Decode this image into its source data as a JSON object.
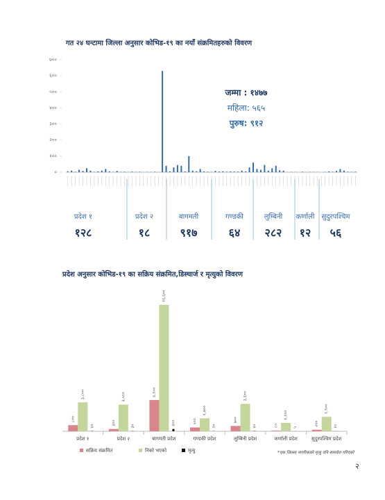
{
  "chart_data": [
    {
      "type": "bar",
      "title": "गत २४ घन्टामा जिल्ला अनुसार कोभिड-१९ का नयाँ संक्रमितहरुको विवरण",
      "categories": [
        null,
        null,
        null,
        null,
        null,
        null,
        null,
        null,
        null,
        null,
        null,
        null,
        null,
        null,
        null,
        null,
        null,
        null,
        null,
        null,
        null,
        null,
        null,
        null,
        null,
        null,
        null,
        null,
        null,
        null,
        null,
        null,
        null,
        null,
        null,
        null,
        null,
        null,
        null,
        null,
        null,
        null,
        null,
        null,
        null,
        null,
        null,
        null,
        null,
        null,
        null,
        null,
        null,
        null,
        null,
        null,
        null,
        null,
        null,
        null,
        null,
        null,
        null,
        null,
        null,
        null,
        null,
        null,
        null,
        null,
        null,
        null,
        null,
        null,
        null,
        null,
        null
      ],
      "values": [
        5,
        10,
        3,
        15,
        8,
        25,
        10,
        2,
        5,
        10,
        20,
        5,
        2,
        8,
        2,
        3,
        1,
        4,
        2,
        3,
        1,
        2,
        2,
        3,
        1,
        630,
        40,
        5,
        30,
        45,
        40,
        5,
        100,
        10,
        6,
        20,
        5,
        3,
        2,
        8,
        4,
        6,
        3,
        5,
        4,
        4,
        10,
        5,
        30,
        60,
        20,
        15,
        45,
        10,
        25,
        40,
        12,
        10,
        1,
        2,
        1,
        0,
        3,
        1,
        2,
        1,
        1,
        0,
        2,
        5,
        3,
        8,
        20,
        10,
        3,
        2,
        3
      ],
      "color": "#2e6db4",
      "ylim": [
        0,
        700
      ],
      "yticks": [
        {
          "value": 0,
          "label": "०"
        },
        {
          "value": 100,
          "label": "१००"
        },
        {
          "value": 200,
          "label": "२००"
        },
        {
          "value": 300,
          "label": "३००"
        },
        {
          "value": 400,
          "label": "४००"
        },
        {
          "value": 500,
          "label": "५००"
        },
        {
          "value": 600,
          "label": "६००"
        },
        {
          "value": 700,
          "label": "७००"
        }
      ],
      "annotations": [
        "जम्मा : १४७७",
        "महिला: ५६५",
        "पुरुष: ९१२"
      ]
    },
    {
      "type": "grouped-bar",
      "title": "प्रदेश अनुसार कोभिड-१९ का सक्रिय संक्रमित,डिस्चार्ज र मृत्युको विवरण",
      "categories": [
        "प्रदेश १",
        "प्रदेश २",
        "बागमती प्रदेश",
        "गण्डकी प्रदेश",
        "लुम्बिनी प्रदेश",
        "कर्णाली प्रदेश",
        "सुदुरपश्चिम प्रदेश"
      ],
      "series": [
        {
          "name": "सक्रिय संक्रमित",
          "color": "#d9868a",
          "values": [
            800,
            300,
            4100,
            500,
            700,
            80,
            200
          ],
          "value_labels": [
            "८००",
            "३००",
            "४,१००",
            "५००",
            "७००",
            "८०",
            "२००"
          ]
        },
        {
          "name": "निको भएको",
          "color": "#c3d69b",
          "values": [
            3800,
            3500,
            16600,
            1700,
            3600,
            1100,
            1900
          ],
          "value_labels": [
            "३,८००",
            "३,५००",
            "१६,६००",
            "१,७००",
            "३,६००",
            "१,१००",
            "१,९००"
          ]
        },
        {
          "name": "मृत्यु",
          "color": "#111111",
          "values": [
            40,
            30,
            300,
            20,
            40,
            5,
            10
          ],
          "value_labels": [
            "४०",
            "३०",
            "३००",
            "२०",
            "४०",
            "५",
            "१०"
          ]
        }
      ]
    }
  ],
  "provinces": [
    {
      "name": "प्रदेश १",
      "total": "१२८"
    },
    {
      "name": "प्रदेश २",
      "total": "१८"
    },
    {
      "name": "बागमती",
      "total": "९१७"
    },
    {
      "name": "गण्डकी",
      "total": "६४"
    },
    {
      "name": "लुम्बिनी",
      "total": "२८२"
    },
    {
      "name": "कर्णाली",
      "total": "१२"
    },
    {
      "name": "सुदुरपश्चिम",
      "total": "५६"
    }
  ],
  "footnote": "*एक जिल्ला नागरिकको मृत्यु पनि समावेश गरिएको",
  "page_number": "२"
}
